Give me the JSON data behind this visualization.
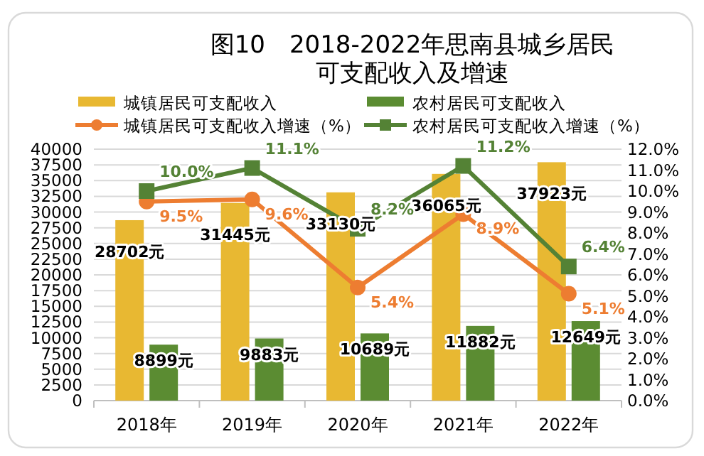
{
  "chart_data": {
    "type": "bar",
    "title": "图10　2018-2022年思南县城乡居民可支配收入及增速",
    "categories": [
      "2018年",
      "2019年",
      "2020年",
      "2021年",
      "2022年"
    ],
    "series": [
      {
        "name": "城镇居民可支配收入",
        "color": "#e8b832",
        "values": [
          28702,
          31445,
          33130,
          36065,
          37923
        ],
        "value_labels": [
          "28702元",
          "31445元",
          "33130元",
          "36065元",
          "37923元"
        ]
      },
      {
        "name": "农村居民可支配收入",
        "color": "#5b8c32",
        "values": [
          8899,
          9883,
          10689,
          11882,
          12649
        ],
        "value_labels": [
          "8899元",
          "9883元",
          "10689元",
          "11882元",
          "12649元"
        ]
      },
      {
        "name": "城镇居民可支配收入增速（%）",
        "type": "line",
        "axis": "y2",
        "marker": "circle",
        "color": "#ed7d31",
        "values": [
          9.5,
          9.6,
          5.4,
          8.9,
          5.1
        ],
        "value_labels": [
          "9.5%",
          "9.6%",
          "5.4%",
          "8.9%",
          "5.1%"
        ]
      },
      {
        "name": "农村居民可支配收入增速（%）",
        "type": "line",
        "axis": "y2",
        "marker": "square",
        "color": "#548235",
        "values": [
          10.0,
          11.1,
          8.2,
          11.2,
          6.4
        ],
        "value_labels": [
          "10.0%",
          "11.1%",
          "8.2%",
          "11.2%",
          "6.4%"
        ]
      }
    ],
    "ylim": [
      0,
      40000
    ],
    "yticks": [
      0,
      2500,
      5000,
      7500,
      10000,
      12500,
      15000,
      17500,
      20000,
      22500,
      25000,
      27500,
      30000,
      32500,
      35000,
      37500,
      40000
    ],
    "y2lim": [
      0,
      12
    ],
    "y2ticks": [
      {
        "value": 0,
        "label": "0.0%"
      },
      {
        "value": 1,
        "label": "1.0%"
      },
      {
        "value": 2,
        "label": "2.0%"
      },
      {
        "value": 3,
        "label": "3.0%"
      },
      {
        "value": 4,
        "label": "4.0%"
      },
      {
        "value": 5,
        "label": "5.0%"
      },
      {
        "value": 6,
        "label": "6.0%"
      },
      {
        "value": 7,
        "label": "7.0%"
      },
      {
        "value": 8,
        "label": "8.0%"
      },
      {
        "value": 9,
        "label": "9.0%"
      },
      {
        "value": 10,
        "label": "10.0%"
      },
      {
        "value": 11,
        "label": "11.0%"
      },
      {
        "value": 12,
        "label": "12.0%"
      }
    ],
    "grid": "y",
    "legend": "top"
  }
}
